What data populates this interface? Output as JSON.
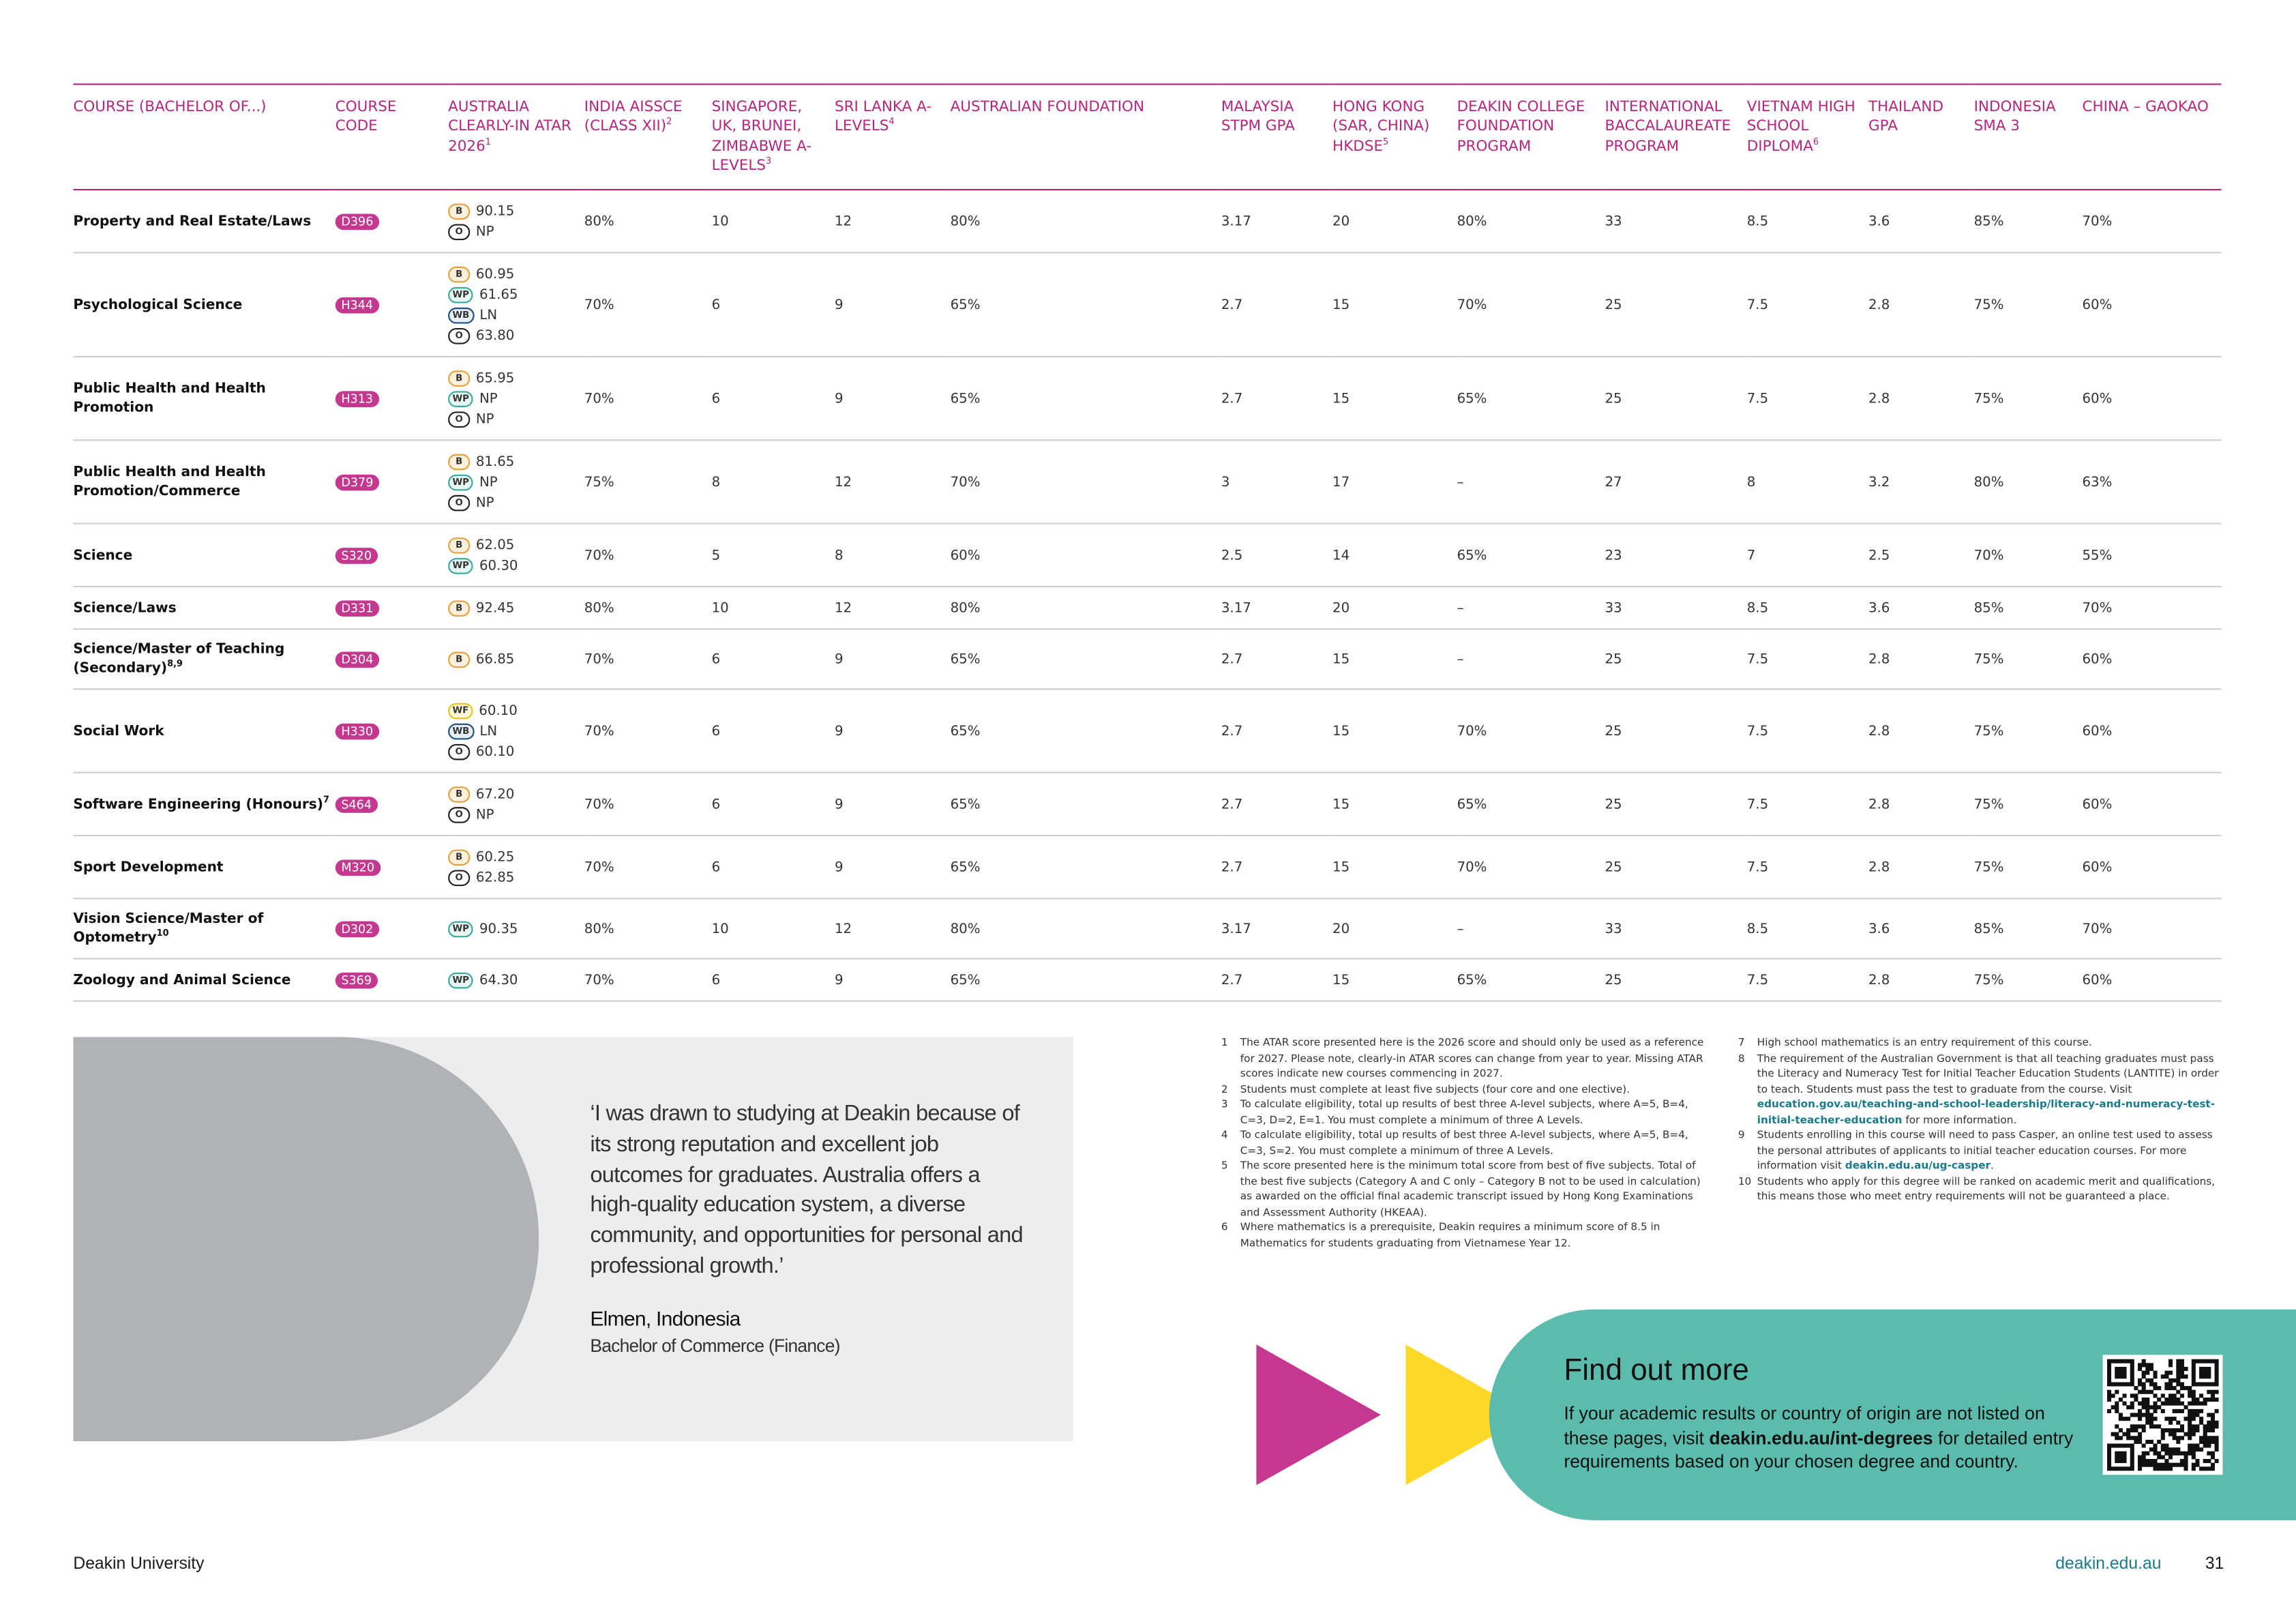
{
  "table": {
    "headers": [
      {
        "text": "COURSE (BACHELOR OF...)"
      },
      {
        "text": "COURSE CODE"
      },
      {
        "text": "AUSTRALIA CLEARLY-IN ATAR 2026",
        "note": "1"
      },
      {
        "text": "INDIA AISSCE (CLASS XII)",
        "note": "2"
      },
      {
        "text": "SINGAPORE, UK, BRUNEI, ZIMBABWE A-LEVELS",
        "note": "3"
      },
      {
        "text": "SRI LANKA A-LEVELS",
        "note": "4"
      },
      {
        "text": "AUSTRALIAN FOUNDATION"
      },
      {
        "text": "MALAYSIA STPM GPA"
      },
      {
        "text": "HONG KONG (SAR, CHINA) HKDSE",
        "note": "5"
      },
      {
        "text": "DEAKIN COLLEGE FOUNDATION PROGRAM"
      },
      {
        "text": "INTERNATIONAL BACCALAUREATE PROGRAM"
      },
      {
        "text": "VIETNAM HIGH SCHOOL DIPLOMA",
        "note": "6"
      },
      {
        "text": "THAILAND GPA"
      },
      {
        "text": "INDONESIA SMA 3"
      },
      {
        "text": "CHINA – GAOKAO"
      }
    ],
    "rows": [
      {
        "course": "Property and Real Estate/Laws",
        "code": "D396",
        "atar": [
          {
            "badge": "B",
            "value": "90.15"
          },
          {
            "badge": "O",
            "value": "NP"
          }
        ],
        "values": [
          "80%",
          "10",
          "12",
          "80%",
          "3.17",
          "20",
          "80%",
          "33",
          "8.5",
          "3.6",
          "85%",
          "70%"
        ]
      },
      {
        "course": "Psychological Science",
        "code": "H344",
        "atar": [
          {
            "badge": "B",
            "value": "60.95"
          },
          {
            "badge": "WP",
            "value": "61.65"
          },
          {
            "badge": "WB",
            "value": "LN"
          },
          {
            "badge": "O",
            "value": "63.80"
          }
        ],
        "values": [
          "70%",
          "6",
          "9",
          "65%",
          "2.7",
          "15",
          "70%",
          "25",
          "7.5",
          "2.8",
          "75%",
          "60%"
        ]
      },
      {
        "course": "Public Health and Health Promotion",
        "code": "H313",
        "atar": [
          {
            "badge": "B",
            "value": "65.95"
          },
          {
            "badge": "WP",
            "value": "NP"
          },
          {
            "badge": "O",
            "value": "NP"
          }
        ],
        "values": [
          "70%",
          "6",
          "9",
          "65%",
          "2.7",
          "15",
          "65%",
          "25",
          "7.5",
          "2.8",
          "75%",
          "60%"
        ]
      },
      {
        "course": "Public Health and Health Promotion/Commerce",
        "code": "D379",
        "atar": [
          {
            "badge": "B",
            "value": "81.65"
          },
          {
            "badge": "WP",
            "value": "NP"
          },
          {
            "badge": "O",
            "value": "NP"
          }
        ],
        "values": [
          "75%",
          "8",
          "12",
          "70%",
          "3",
          "17",
          "–",
          "27",
          "8",
          "3.2",
          "80%",
          "63%"
        ]
      },
      {
        "course": "Science",
        "code": "S320",
        "atar": [
          {
            "badge": "B",
            "value": "62.05"
          },
          {
            "badge": "WP",
            "value": "60.30"
          }
        ],
        "values": [
          "70%",
          "5",
          "8",
          "60%",
          "2.5",
          "14",
          "65%",
          "23",
          "7",
          "2.5",
          "70%",
          "55%"
        ]
      },
      {
        "course": "Science/Laws",
        "code": "D331",
        "atar": [
          {
            "badge": "B",
            "value": "92.45"
          }
        ],
        "values": [
          "80%",
          "10",
          "12",
          "80%",
          "3.17",
          "20",
          "–",
          "33",
          "8.5",
          "3.6",
          "85%",
          "70%"
        ]
      },
      {
        "course": "Science/Master of Teaching (Secondary)",
        "note": "8,9",
        "code": "D304",
        "atar": [
          {
            "badge": "B",
            "value": "66.85"
          }
        ],
        "values": [
          "70%",
          "6",
          "9",
          "65%",
          "2.7",
          "15",
          "–",
          "25",
          "7.5",
          "2.8",
          "75%",
          "60%"
        ]
      },
      {
        "course": "Social Work",
        "code": "H330",
        "atar": [
          {
            "badge": "WF",
            "value": "60.10"
          },
          {
            "badge": "WB",
            "value": "LN"
          },
          {
            "badge": "O",
            "value": "60.10"
          }
        ],
        "values": [
          "70%",
          "6",
          "9",
          "65%",
          "2.7",
          "15",
          "70%",
          "25",
          "7.5",
          "2.8",
          "75%",
          "60%"
        ]
      },
      {
        "course": "Software Engineering (Honours)",
        "note": "7",
        "code": "S464",
        "atar": [
          {
            "badge": "B",
            "value": "67.20"
          },
          {
            "badge": "O",
            "value": "NP"
          }
        ],
        "values": [
          "70%",
          "6",
          "9",
          "65%",
          "2.7",
          "15",
          "65%",
          "25",
          "7.5",
          "2.8",
          "75%",
          "60%"
        ]
      },
      {
        "course": "Sport Development",
        "code": "M320",
        "atar": [
          {
            "badge": "B",
            "value": "60.25"
          },
          {
            "badge": "O",
            "value": "62.85"
          }
        ],
        "values": [
          "70%",
          "6",
          "9",
          "65%",
          "2.7",
          "15",
          "70%",
          "25",
          "7.5",
          "2.8",
          "75%",
          "60%"
        ]
      },
      {
        "course": "Vision Science/Master of Optometry",
        "note": "10",
        "code": "D302",
        "atar": [
          {
            "badge": "WP",
            "value": "90.35"
          }
        ],
        "values": [
          "80%",
          "10",
          "12",
          "80%",
          "3.17",
          "20",
          "–",
          "33",
          "8.5",
          "3.6",
          "85%",
          "70%"
        ]
      },
      {
        "course": "Zoology and Animal Science",
        "code": "S369",
        "atar": [
          {
            "badge": "WP",
            "value": "64.30"
          }
        ],
        "values": [
          "70%",
          "6",
          "9",
          "65%",
          "2.7",
          "15",
          "65%",
          "25",
          "7.5",
          "2.8",
          "75%",
          "60%"
        ]
      }
    ]
  },
  "quote": {
    "text": "‘I was drawn to studying at Deakin because of its strong reputation and excellent job outcomes for graduates. Australia offers a high-quality education system, a diverse community, and opportunities for personal and professional growth.’",
    "name": "Elmen, Indonesia",
    "course": "Bachelor of Commerce (Finance)"
  },
  "footnotes": [
    {
      "number": "1",
      "text": "The ATAR score presented here is the 2026 score and should only be used as a reference for 2027. Please note, clearly-in ATAR scores can change from year to year. Missing ATAR scores indicate new courses commencing in 2027."
    },
    {
      "number": "2",
      "text": "Students must complete at least five subjects (four core and one elective)."
    },
    {
      "number": "3",
      "text": "To calculate eligibility, total up results of best three A-level subjects, where A=5, B=4, C=3, D=2, E=1. You must complete a minimum of three A Levels."
    },
    {
      "number": "4",
      "text": "To calculate eligibility, total up results of best three A-level subjects, where A=5, B=4, C=3, S=2. You must complete a minimum of three A Levels."
    },
    {
      "number": "5",
      "text": "The score presented here is the minimum total score from best of five subjects. Total of the best five subjects (Category A and C only – Category B not to be used in calculation) as awarded on the official final academic transcript issued by Hong Kong Examinations and Assessment Authority (HKEAA)."
    },
    {
      "number": "6",
      "text": "Where mathematics is a prerequisite, Deakin requires a minimum score of 8.5 in Mathematics for students graduating from Vietnamese Year 12."
    },
    {
      "number": "7",
      "text": "High school mathematics is an entry requirement of this course."
    },
    {
      "number": "8",
      "text": "The requirement of the Australian Government is that all teaching graduates must pass the Literacy and Numeracy Test for Initial Teacher Education Students (LANTITE) in order to teach. Students must pass the test to graduate from the course. Visit ",
      "link": "education.gov.au/teaching-and-school-leadership/literacy-and-numeracy-test-initial-teacher-education",
      "after": " for more information."
    },
    {
      "number": "9",
      "text": "Students enrolling in this course will need to pass Casper, an online test used to assess the personal attributes of applicants to initial teacher education courses. For more information visit ",
      "link": "deakin.edu.au/ug-casper",
      "after": "."
    },
    {
      "number": "10",
      "text": "Students who apply for this degree will be ranked on academic merit and qualifications, this means those who meet entry requirements will not be guaranteed a place."
    }
  ],
  "find_out_more": {
    "title": "Find out more",
    "text": "If your academic results or country of origin are not listed on these pages, visit ",
    "link": "deakin.edu.au/int-degrees",
    "after": " for detailed entry requirements based on your chosen degree and country."
  },
  "footer": {
    "left": "Deakin University",
    "url": "deakin.edu.au",
    "page": "31"
  }
}
